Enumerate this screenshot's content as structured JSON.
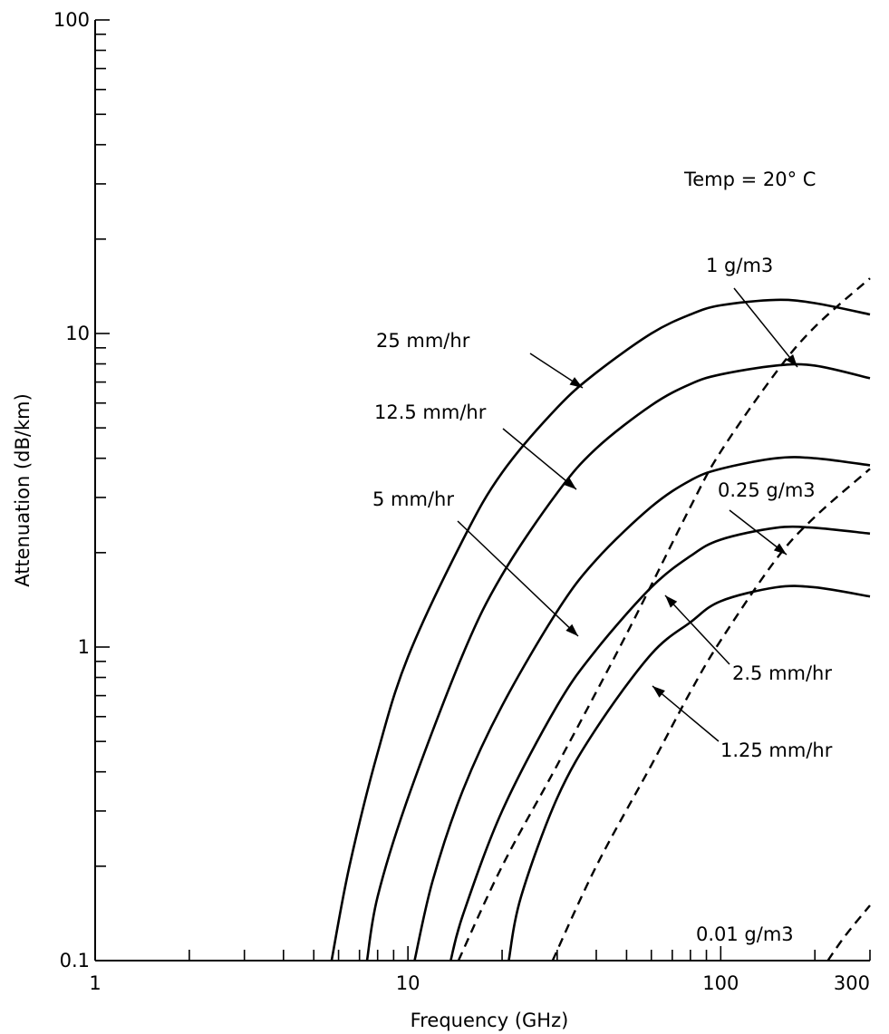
{
  "chart_data": {
    "type": "line",
    "x_scale": "log",
    "y_scale": "log",
    "xlim": [
      1,
      300
    ],
    "ylim": [
      0.1,
      100
    ],
    "xlabel": "Frequency (GHz)",
    "ylabel": "Attenuation (dB/km)",
    "x_tick_labels": [
      {
        "value": 1,
        "label": "1"
      },
      {
        "value": 10,
        "label": "10"
      },
      {
        "value": 100,
        "label": "100"
      },
      {
        "value": 300,
        "label": "300"
      }
    ],
    "y_tick_labels": [
      {
        "value": 0.1,
        "label": "0.1"
      },
      {
        "value": 1,
        "label": "1"
      },
      {
        "value": 10,
        "label": "10"
      },
      {
        "value": 100,
        "label": "100"
      }
    ],
    "grid": false,
    "annotation_temp": "Temp = 20° C",
    "series": [
      {
        "id": "rain-25",
        "name": "25 mm/hr",
        "style": "solid",
        "x": [
          5.7,
          6.5,
          8,
          10,
          15,
          20,
          30,
          40,
          60,
          80,
          100,
          150,
          200,
          300
        ],
        "y": [
          0.1,
          0.2,
          0.46,
          0.93,
          2.2,
          3.6,
          5.8,
          7.5,
          10,
          11.5,
          12.3,
          12.8,
          12.5,
          11.5
        ]
      },
      {
        "id": "rain-12-5",
        "name": "12.5 mm/hr",
        "style": "solid",
        "x": [
          7.4,
          8,
          10,
          15,
          20,
          30,
          40,
          60,
          80,
          100,
          150,
          200,
          300
        ],
        "y": [
          0.1,
          0.16,
          0.33,
          0.95,
          1.7,
          3.1,
          4.3,
          5.9,
          6.9,
          7.4,
          7.9,
          7.9,
          7.2
        ]
      },
      {
        "id": "rain-5",
        "name": "5 mm/hr",
        "style": "solid",
        "x": [
          10.5,
          12,
          15,
          20,
          30,
          40,
          60,
          80,
          100,
          150,
          200,
          300
        ],
        "y": [
          0.1,
          0.18,
          0.35,
          0.65,
          1.3,
          1.9,
          2.8,
          3.4,
          3.7,
          4.0,
          4.0,
          3.8
        ]
      },
      {
        "id": "rain-2-5",
        "name": "2.5 mm/hr",
        "style": "solid",
        "x": [
          13.7,
          15,
          20,
          30,
          40,
          60,
          80,
          100,
          150,
          200,
          300
        ],
        "y": [
          0.1,
          0.14,
          0.3,
          0.65,
          0.98,
          1.55,
          1.95,
          2.2,
          2.4,
          2.4,
          2.3
        ]
      },
      {
        "id": "rain-1-25",
        "name": "1.25 mm/hr",
        "style": "solid",
        "x": [
          21,
          23,
          30,
          40,
          60,
          80,
          100,
          150,
          200,
          300
        ],
        "y": [
          0.1,
          0.16,
          0.33,
          0.55,
          0.95,
          1.2,
          1.4,
          1.55,
          1.55,
          1.45
        ]
      },
      {
        "id": "fog-1",
        "name": "1 g/m3",
        "style": "dashed",
        "x": [
          14.5,
          20,
          30,
          50,
          80,
          100,
          150,
          200,
          300
        ],
        "y": [
          0.1,
          0.2,
          0.42,
          1.1,
          2.8,
          4.2,
          7.5,
          10.5,
          15
        ]
      },
      {
        "id": "fog-0-25",
        "name": "0.25 g/m3",
        "style": "dashed",
        "x": [
          29,
          40,
          60,
          80,
          100,
          150,
          200,
          300
        ],
        "y": [
          0.1,
          0.2,
          0.42,
          0.72,
          1.05,
          1.9,
          2.6,
          3.7
        ]
      },
      {
        "id": "fog-0-01",
        "name": "0.01 g/m3",
        "style": "dashed",
        "x": [
          220,
          250,
          300
        ],
        "y": [
          0.1,
          0.12,
          0.15
        ]
      }
    ],
    "annotations": [
      {
        "series": "rain-25",
        "text": "25 mm/hr"
      },
      {
        "series": "rain-12-5",
        "text": "12.5 mm/hr"
      },
      {
        "series": "rain-5",
        "text": "5 mm/hr"
      },
      {
        "series": "rain-2-5",
        "text": "2.5 mm/hr"
      },
      {
        "series": "rain-1-25",
        "text": "1.25 mm/hr"
      },
      {
        "series": "fog-1",
        "text": "1 g/m3"
      },
      {
        "series": "fog-0-25",
        "text": "0.25 g/m3"
      },
      {
        "series": "fog-0-01",
        "text": "0.01 g/m3"
      }
    ]
  }
}
